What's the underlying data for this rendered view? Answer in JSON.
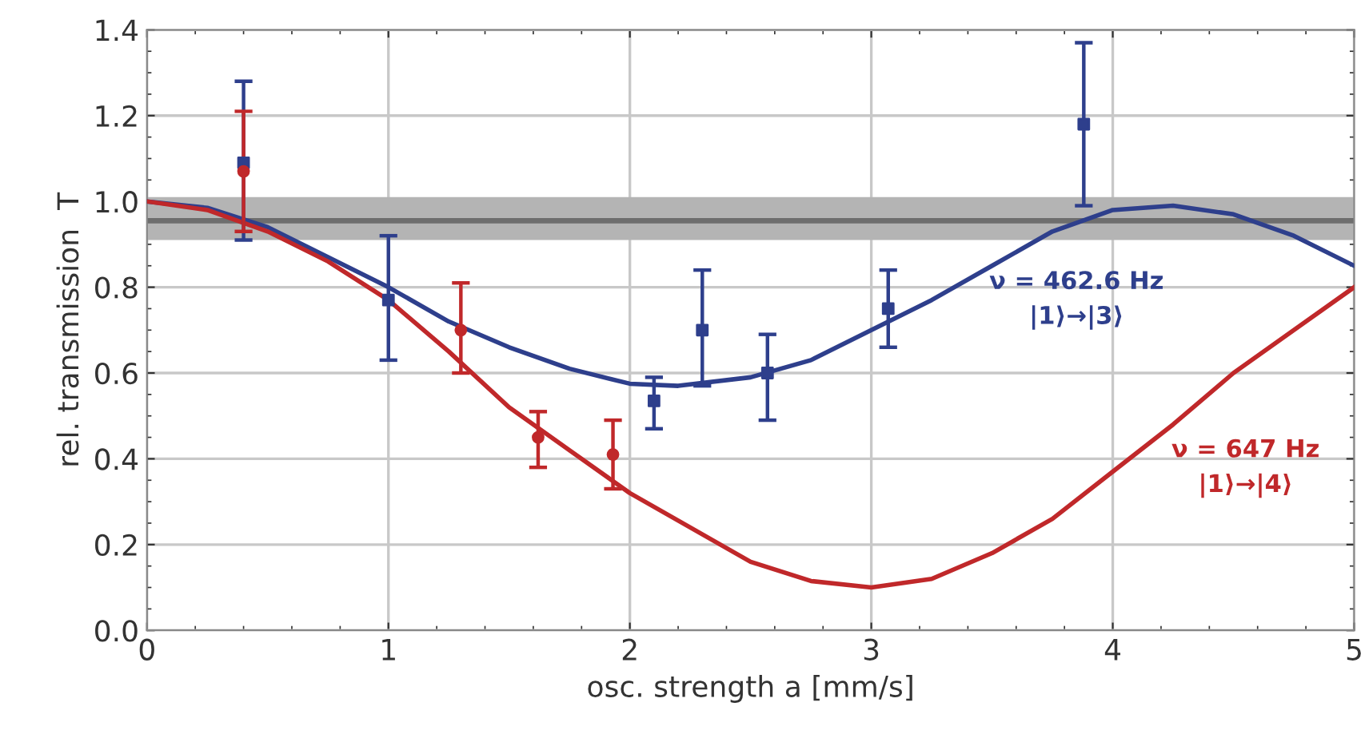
{
  "chart_data": {
    "type": "line",
    "xlabel": "osc. strength a [mm/s]",
    "ylabel": "rel. transmission  T",
    "xlim": [
      0,
      5
    ],
    "xticks": [
      0,
      1,
      2,
      3,
      4,
      5
    ],
    "ylim": [
      0,
      1.4
    ],
    "yticks": [
      {
        "value": 0,
        "label": "0.0"
      },
      {
        "value": 0.2,
        "label": "0.2"
      },
      {
        "value": 0.4,
        "label": "0.4"
      },
      {
        "value": 0.6,
        "label": "0.6"
      },
      {
        "value": 0.8,
        "label": "0.8"
      },
      {
        "value": 1.0,
        "label": "1.0"
      },
      {
        "value": 1.2,
        "label": "1.2"
      },
      {
        "value": 1.4,
        "label": "1.4"
      }
    ],
    "grid": true,
    "legend": false,
    "bands": [
      {
        "axis": "y",
        "from": 0.91,
        "to": 1.01,
        "color": "#b4b4b4"
      }
    ],
    "ref_lines": [
      {
        "axis": "y",
        "value": 0.955,
        "color": "#6e6e6e",
        "line_style": "solid"
      }
    ],
    "series": [
      {
        "name": "ν = 462.6 Hz\n|1⟩→|3⟩",
        "color": "#2e3f8c",
        "x": [
          0,
          0.25,
          0.5,
          0.75,
          1.0,
          1.25,
          1.5,
          1.75,
          2.0,
          2.2,
          2.5,
          2.75,
          3.0,
          3.25,
          3.5,
          3.75,
          4.0,
          4.25,
          4.5,
          4.75,
          5.0
        ],
        "values": [
          1.0,
          0.985,
          0.94,
          0.87,
          0.8,
          0.72,
          0.66,
          0.61,
          0.575,
          0.57,
          0.59,
          0.63,
          0.7,
          0.77,
          0.85,
          0.93,
          0.98,
          0.99,
          0.97,
          0.92,
          0.85
        ]
      },
      {
        "name": "ν = 647 Hz\n|1⟩→|4⟩",
        "color": "#c0282a",
        "x": [
          0,
          0.25,
          0.5,
          0.75,
          1.0,
          1.25,
          1.5,
          1.75,
          2.0,
          2.25,
          2.5,
          2.75,
          3.0,
          3.25,
          3.5,
          3.75,
          4.0,
          4.25,
          4.5,
          4.75,
          5.0
        ],
        "values": [
          1.0,
          0.98,
          0.93,
          0.86,
          0.77,
          0.65,
          0.52,
          0.42,
          0.32,
          0.24,
          0.16,
          0.115,
          0.1,
          0.12,
          0.18,
          0.26,
          0.37,
          0.48,
          0.6,
          0.7,
          0.8
        ]
      },
      {
        "type": "scatter",
        "color": "#2e3f8c",
        "marker": "square",
        "x": [
          0.4,
          1.0,
          2.1,
          2.3,
          2.57,
          3.07,
          3.88
        ],
        "values": [
          1.09,
          0.77,
          0.535,
          0.7,
          0.6,
          0.75,
          1.18
        ],
        "errors": [
          [
            0.91,
            1.28
          ],
          [
            0.63,
            0.92
          ],
          [
            0.47,
            0.59
          ],
          [
            0.57,
            0.84
          ],
          [
            0.49,
            0.69
          ],
          [
            0.66,
            0.84
          ],
          [
            0.99,
            1.37
          ]
        ]
      },
      {
        "type": "scatter",
        "color": "#c0282a",
        "marker": "circle",
        "x": [
          0.4,
          1.3,
          1.62,
          1.93
        ],
        "values": [
          1.07,
          0.7,
          0.45,
          0.41
        ],
        "errors": [
          [
            0.93,
            1.21
          ],
          [
            0.6,
            0.81
          ],
          [
            0.38,
            0.51
          ],
          [
            0.33,
            0.49
          ]
        ]
      }
    ]
  }
}
